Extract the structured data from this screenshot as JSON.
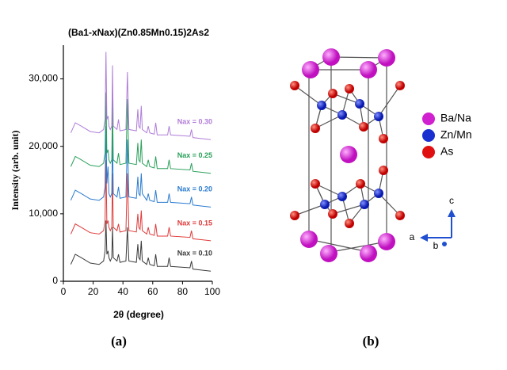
{
  "chart_data": {
    "type": "line",
    "title": "(Ba1-xNax)(Zn0.85Mn0.15)2As2",
    "x_label": "2θ (degree)",
    "y_label": "Intensity (arb. unit)",
    "panel_label": "(a)",
    "x": [
      5,
      8,
      12,
      18,
      24,
      27,
      28,
      28.6,
      29.2,
      30,
      30.6,
      31.5,
      32.5,
      33,
      33.5,
      36,
      37,
      38,
      42,
      43,
      44,
      49,
      50,
      50.6,
      51.5,
      52.3,
      53,
      56,
      57,
      58,
      61,
      62,
      63,
      70,
      71,
      72,
      85,
      86,
      87,
      99
    ],
    "series": [
      {
        "name": "Nax = 0.10",
        "color": "#3a3a3a",
        "values": [
          2500,
          4000,
          3500,
          2700,
          2500,
          3000,
          4500,
          9000,
          4000,
          4500,
          3500,
          3000,
          3500,
          8000,
          3500,
          3000,
          4000,
          2800,
          3000,
          8000,
          3000,
          2800,
          5500,
          3500,
          3200,
          6000,
          3000,
          2500,
          3500,
          2500,
          2300,
          4000,
          2200,
          2200,
          3500,
          2200,
          2000,
          3000,
          1800,
          1500
        ]
      },
      {
        "name": "Nax = 0.15",
        "color": "#e03a3a",
        "values": [
          7000,
          8500,
          8000,
          7200,
          7000,
          7500,
          9000,
          18000,
          8500,
          9000,
          8000,
          7500,
          8000,
          16000,
          8000,
          7500,
          8500,
          7300,
          7500,
          16000,
          7500,
          7300,
          10000,
          8000,
          7700,
          10500,
          7500,
          7000,
          8000,
          7000,
          6800,
          8500,
          6700,
          6700,
          8000,
          6700,
          6500,
          7500,
          6300,
          6000
        ]
      },
      {
        "name": "Nax = 0.20",
        "color": "#2a7bd0",
        "values": [
          12000,
          13500,
          13000,
          12200,
          12000,
          12500,
          14000,
          23000,
          14500,
          17000,
          13000,
          12500,
          13000,
          22000,
          13000,
          12500,
          14000,
          12300,
          12500,
          21000,
          12500,
          12300,
          15500,
          13000,
          12700,
          16000,
          13000,
          12000,
          13000,
          12000,
          11800,
          13500,
          11700,
          11700,
          13000,
          11700,
          11500,
          12500,
          11300,
          11000
        ]
      },
      {
        "name": "Nax = 0.25",
        "color": "#2aa05a",
        "values": [
          17000,
          18500,
          18000,
          17200,
          17000,
          17500,
          19000,
          28000,
          19000,
          19500,
          18000,
          17500,
          18000,
          27000,
          18000,
          17500,
          19000,
          17300,
          17500,
          27000,
          17500,
          17300,
          20500,
          18000,
          17700,
          21000,
          17500,
          17000,
          18000,
          17000,
          16800,
          18500,
          16700,
          16700,
          18000,
          16700,
          16500,
          17500,
          16300,
          16000
        ]
      },
      {
        "name": "Nax = 0.30",
        "color": "#b07cd8",
        "values": [
          22000,
          23500,
          23000,
          22200,
          22000,
          22500,
          24000,
          34000,
          24000,
          24500,
          23000,
          22500,
          23000,
          32000,
          23000,
          22500,
          24000,
          22300,
          22500,
          31000,
          22500,
          22300,
          25500,
          23000,
          22700,
          26000,
          22500,
          22000,
          23000,
          22000,
          21800,
          23500,
          21700,
          21700,
          23000,
          21700,
          21500,
          22500,
          21300,
          21000
        ]
      }
    ],
    "xlim": [
      0,
      100
    ],
    "xticks": [
      0,
      20,
      40,
      60,
      80,
      100
    ],
    "ylim": [
      0,
      35000
    ],
    "yticks": [
      0,
      {
        "value": 10000,
        "label": "10,000"
      },
      {
        "value": 20000,
        "label": "20,000"
      },
      {
        "value": 30000,
        "label": "30,000"
      }
    ]
  },
  "diagram": {
    "panel_label": "(b)",
    "legend": [
      {
        "label": "Ba/Na",
        "color": "#d020d0"
      },
      {
        "label": "Zn/Mn",
        "color": "#1a2fd0"
      },
      {
        "label": "As",
        "color": "#e01010"
      }
    ],
    "axes": [
      "c",
      "a",
      "b"
    ]
  }
}
